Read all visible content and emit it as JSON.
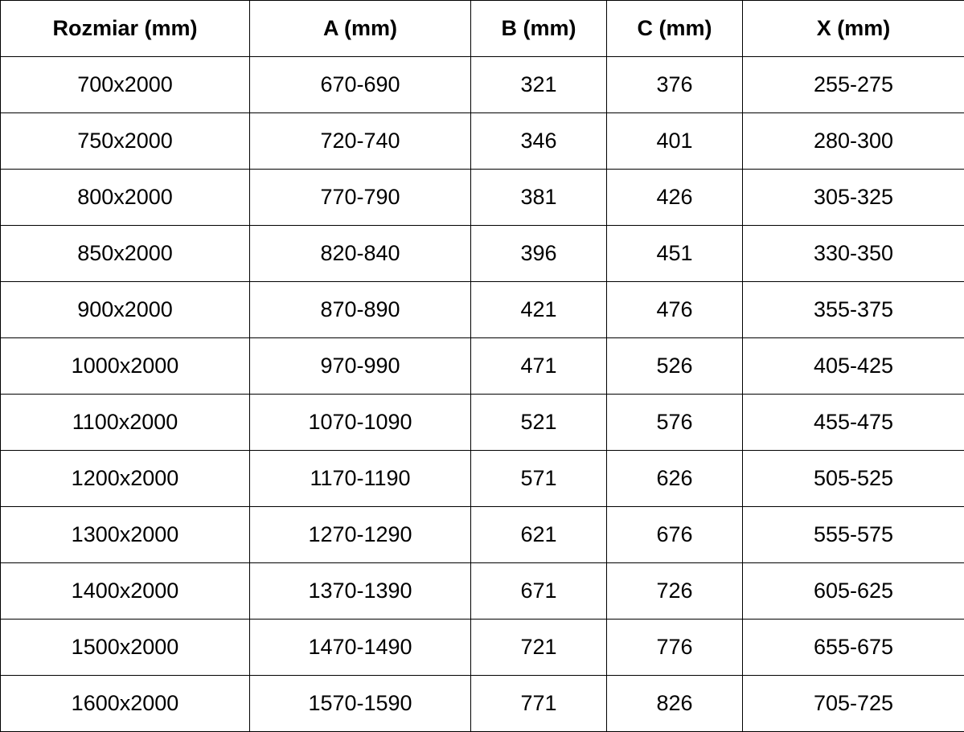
{
  "table": {
    "headers": [
      "Rozmiar (mm)",
      "A (mm)",
      "B (mm)",
      "C (mm)",
      "X (mm)"
    ],
    "rows": [
      [
        "700x2000",
        "670-690",
        "321",
        "376",
        "255-275"
      ],
      [
        "750x2000",
        "720-740",
        "346",
        "401",
        "280-300"
      ],
      [
        "800x2000",
        "770-790",
        "381",
        "426",
        "305-325"
      ],
      [
        "850x2000",
        "820-840",
        "396",
        "451",
        "330-350"
      ],
      [
        "900x2000",
        "870-890",
        "421",
        "476",
        "355-375"
      ],
      [
        "1000x2000",
        "970-990",
        "471",
        "526",
        "405-425"
      ],
      [
        "1100x2000",
        "1070-1090",
        "521",
        "576",
        "455-475"
      ],
      [
        "1200x2000",
        "1170-1190",
        "571",
        "626",
        "505-525"
      ],
      [
        "1300x2000",
        "1270-1290",
        "621",
        "676",
        "555-575"
      ],
      [
        "1400x2000",
        "1370-1390",
        "671",
        "726",
        "605-625"
      ],
      [
        "1500x2000",
        "1470-1490",
        "721",
        "776",
        "655-675"
      ],
      [
        "1600x2000",
        "1570-1590",
        "771",
        "826",
        "705-725"
      ]
    ]
  }
}
